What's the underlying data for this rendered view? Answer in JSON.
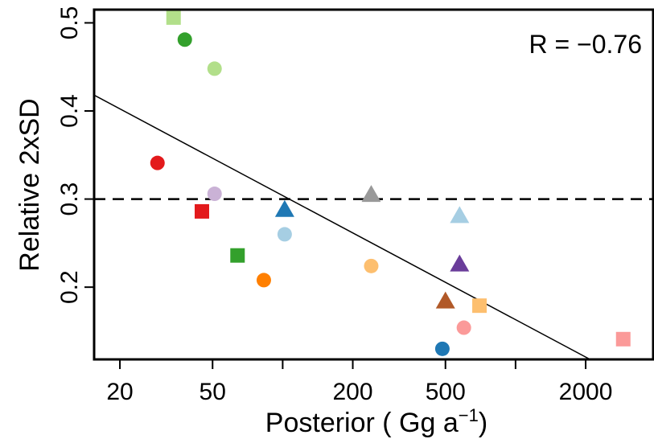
{
  "chart_data": {
    "type": "scatter",
    "title": "",
    "xlabel": "Posterior ( Gg a",
    "xlabel_sup": "−1",
    "xlabel_end": ")",
    "ylabel": "Relative 2xSD",
    "x_scale": "log",
    "xlim": [
      15.5,
      3900
    ],
    "ylim": [
      0.118,
      0.515
    ],
    "x_ticks": [
      20,
      50,
      100,
      200,
      500,
      1000,
      2000
    ],
    "x_tick_labels": [
      "20",
      "50",
      "",
      "200",
      "500",
      "",
      "2000"
    ],
    "y_ticks": [
      0.2,
      0.3,
      0.4,
      0.5
    ],
    "y_tick_labels": [
      "0.2",
      "0.3",
      "0.4",
      "0.5"
    ],
    "grid": false,
    "reference_line": {
      "y": 0.3,
      "style": "dashed"
    },
    "fit_line": {
      "x": [
        15.5,
        2090
      ],
      "y": [
        0.418,
        0.118
      ]
    },
    "annotation": "R = −0.76",
    "points": [
      {
        "x": 34,
        "y": 0.506,
        "shape": "square",
        "color": "#b2df8a"
      },
      {
        "x": 38,
        "y": 0.481,
        "shape": "circle",
        "color": "#33a02c"
      },
      {
        "x": 51,
        "y": 0.448,
        "shape": "circle",
        "color": "#b2df8a"
      },
      {
        "x": 29,
        "y": 0.341,
        "shape": "circle",
        "color": "#e31a1c"
      },
      {
        "x": 51,
        "y": 0.306,
        "shape": "circle",
        "color": "#cab2d6"
      },
      {
        "x": 45,
        "y": 0.286,
        "shape": "square",
        "color": "#e31a1c"
      },
      {
        "x": 64,
        "y": 0.236,
        "shape": "square",
        "color": "#33a02c"
      },
      {
        "x": 83,
        "y": 0.208,
        "shape": "circle",
        "color": "#ff7f00"
      },
      {
        "x": 102,
        "y": 0.288,
        "shape": "triangle",
        "color": "#1f78b4"
      },
      {
        "x": 102,
        "y": 0.26,
        "shape": "circle",
        "color": "#a6cee3"
      },
      {
        "x": 240,
        "y": 0.305,
        "shape": "triangle",
        "color": "#999999"
      },
      {
        "x": 240,
        "y": 0.224,
        "shape": "circle",
        "color": "#fdbf6f"
      },
      {
        "x": 485,
        "y": 0.13,
        "shape": "circle",
        "color": "#1f78b4"
      },
      {
        "x": 500,
        "y": 0.184,
        "shape": "triangle",
        "color": "#b15928"
      },
      {
        "x": 600,
        "y": 0.154,
        "shape": "circle",
        "color": "#fb9a99"
      },
      {
        "x": 575,
        "y": 0.281,
        "shape": "triangle",
        "color": "#a6cee3"
      },
      {
        "x": 575,
        "y": 0.226,
        "shape": "triangle",
        "color": "#6a3d9a"
      },
      {
        "x": 700,
        "y": 0.179,
        "shape": "square",
        "color": "#fdbf6f"
      },
      {
        "x": 2900,
        "y": 0.141,
        "shape": "square",
        "color": "#fb9a99"
      }
    ]
  }
}
